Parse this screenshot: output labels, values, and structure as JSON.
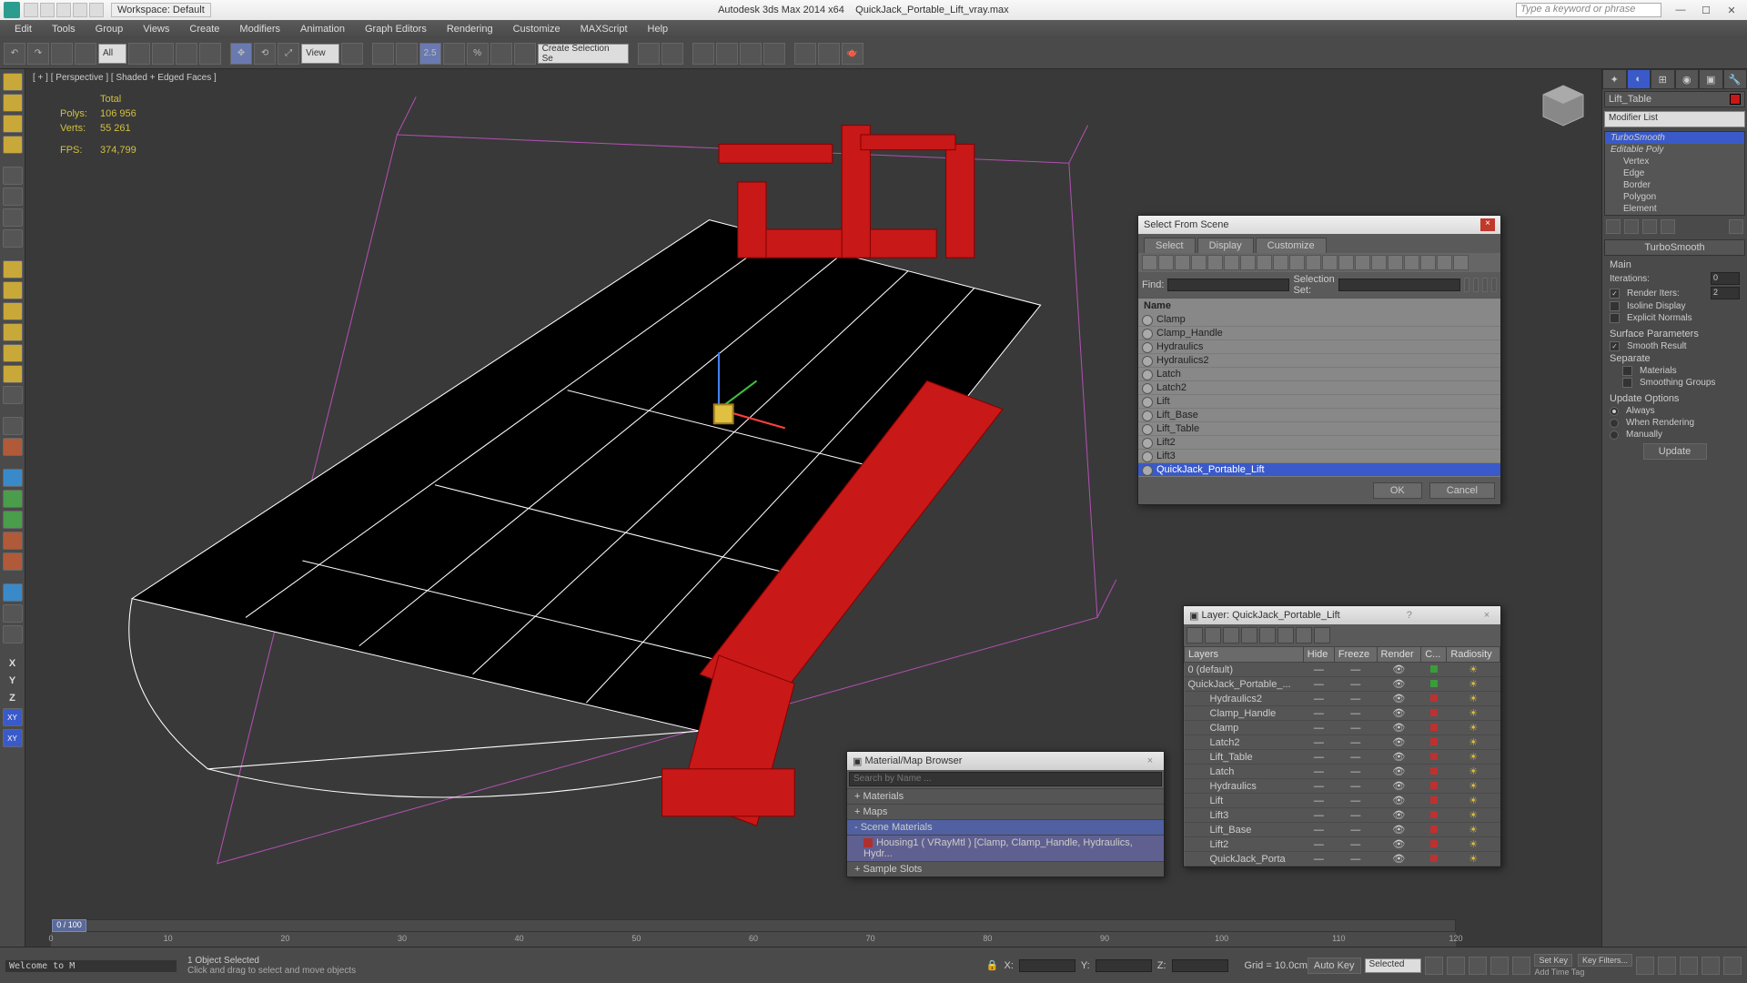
{
  "app": {
    "title_center": "Autodesk 3ds Max  2014 x64",
    "title_file": "QuickJack_Portable_Lift_vray.max",
    "workspace": "Workspace: Default",
    "search_placeholder": "Type a keyword or phrase"
  },
  "menu": [
    "Edit",
    "Tools",
    "Group",
    "Views",
    "Create",
    "Modifiers",
    "Animation",
    "Graph Editors",
    "Rendering",
    "Customize",
    "MAXScript",
    "Help"
  ],
  "toolbar": {
    "all": "All",
    "view": "View"
  },
  "viewport": {
    "label": "[ + ] [ Perspective ] [ Shaded + Edged Faces ]",
    "stats_hdr": "Total",
    "polys_label": "Polys:",
    "polys": "106 956",
    "verts_label": "Verts:",
    "verts": "55 261",
    "fps_label": "FPS:",
    "fps": "374,799"
  },
  "command_panel": {
    "obj_name": "Lift_Table",
    "mod_list": "Modifier List",
    "stack": [
      "TurboSmooth",
      "Editable Poly",
      "Vertex",
      "Edge",
      "Border",
      "Polygon",
      "Element"
    ],
    "rollout": "TurboSmooth",
    "main": "Main",
    "iterations_label": "Iterations:",
    "iterations": "0",
    "render_iters_label": "Render Iters:",
    "render_iters": "2",
    "isoline": "Isoline Display",
    "explicit": "Explicit Normals",
    "surface_params": "Surface Parameters",
    "smooth_result": "Smooth Result",
    "separate": "Separate",
    "materials": "Materials",
    "smoothing_groups": "Smoothing Groups",
    "update_options": "Update Options",
    "always": "Always",
    "when_rendering": "When Rendering",
    "manually": "Manually",
    "update": "Update"
  },
  "sfs": {
    "title": "Select From Scene",
    "tabs": [
      "Select",
      "Display",
      "Customize"
    ],
    "find": "Find:",
    "selset": "Selection Set:",
    "name_hdr": "Name",
    "items": [
      "Clamp",
      "Clamp_Handle",
      "Hydraulics",
      "Hydraulics2",
      "Latch",
      "Latch2",
      "Lift",
      "Lift_Base",
      "Lift_Table",
      "Lift2",
      "Lift3",
      "QuickJack_Portable_Lift"
    ],
    "ok": "OK",
    "cancel": "Cancel"
  },
  "mmb": {
    "title": "Material/Map Browser",
    "search": "Search by Name ...",
    "cats": [
      "+ Materials",
      "+ Maps",
      "- Scene Materials"
    ],
    "mat": "Housing1 ( VRayMtl ) [Clamp, Clamp_Handle, Hydraulics, Hydr...",
    "slots": "+ Sample Slots"
  },
  "layers": {
    "title": "Layer: QuickJack_Portable_Lift",
    "cols": [
      "Layers",
      "Hide",
      "Freeze",
      "Render",
      "C...",
      "Radiosity"
    ],
    "rows": [
      {
        "name": "0 (default)",
        "color": "g",
        "indent": 0
      },
      {
        "name": "QuickJack_Portable_...",
        "color": "g",
        "indent": 0
      },
      {
        "name": "Hydraulics2",
        "color": "r",
        "indent": 1
      },
      {
        "name": "Clamp_Handle",
        "color": "r",
        "indent": 1
      },
      {
        "name": "Clamp",
        "color": "r",
        "indent": 1
      },
      {
        "name": "Latch2",
        "color": "r",
        "indent": 1
      },
      {
        "name": "Lift_Table",
        "color": "r",
        "indent": 1
      },
      {
        "name": "Latch",
        "color": "r",
        "indent": 1
      },
      {
        "name": "Hydraulics",
        "color": "r",
        "indent": 1
      },
      {
        "name": "Lift",
        "color": "r",
        "indent": 1
      },
      {
        "name": "Lift3",
        "color": "r",
        "indent": 1
      },
      {
        "name": "Lift_Base",
        "color": "r",
        "indent": 1
      },
      {
        "name": "Lift2",
        "color": "r",
        "indent": 1
      },
      {
        "name": "QuickJack_Porta",
        "color": "r",
        "indent": 1
      }
    ]
  },
  "timeline": {
    "frame": "0 / 100",
    "ticks": [
      0,
      10,
      20,
      30,
      40,
      50,
      60,
      70,
      80,
      90,
      100,
      110,
      120
    ]
  },
  "status": {
    "prompt": "Welcome to M",
    "selected": "1 Object Selected",
    "hint": "Click and drag to select and move objects",
    "x": "X:",
    "y": "Y:",
    "z": "Z:",
    "grid": "Grid = 10.0cm",
    "autokey": "Auto Key",
    "setkey": "Set Key",
    "selected_drop": "Selected",
    "timetag": "Add Time Tag",
    "keyfilters": "Key Filters..."
  },
  "colors": {
    "accent": "#3a5ac9",
    "red": "#c81818",
    "wire": "#ffffff",
    "bg": "#393939"
  }
}
